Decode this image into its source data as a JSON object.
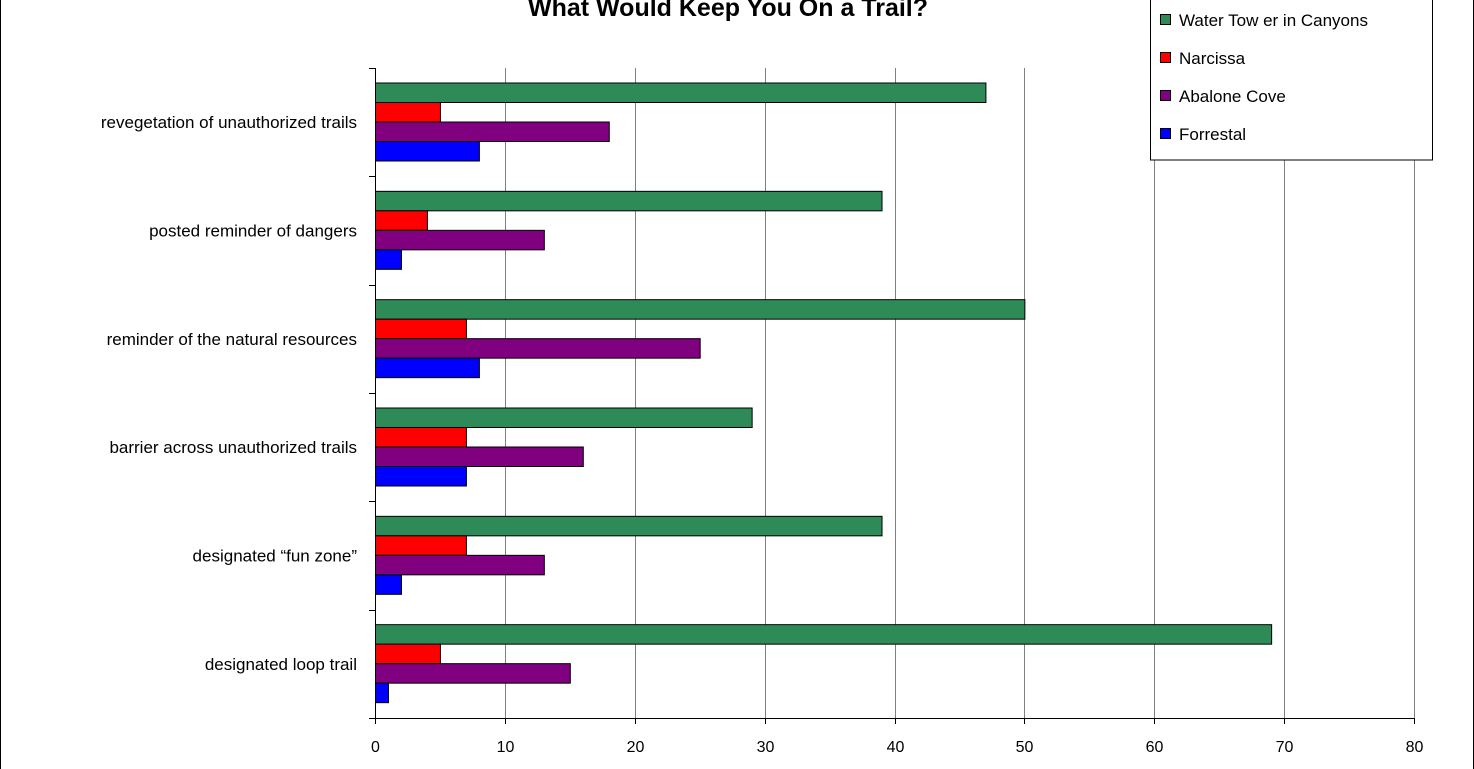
{
  "chart_data": {
    "type": "bar",
    "orientation": "horizontal",
    "title": "What Would Keep You On a Trail?",
    "categories": [
      "revegetation of unauthorized trails",
      "posted reminder of dangers",
      "reminder of the natural resources",
      "barrier across unauthorized trails",
      "designated “fun zone”",
      "designated loop trail"
    ],
    "series": [
      {
        "name": "Water Tow er in Canyons",
        "color": "#2e8b57",
        "values": [
          47,
          39,
          50,
          29,
          39,
          69
        ]
      },
      {
        "name": "Narcissa",
        "color": "#ff0000",
        "values": [
          5,
          4,
          7,
          7,
          7,
          5
        ]
      },
      {
        "name": "Abalone Cove",
        "color": "#800080",
        "values": [
          18,
          13,
          25,
          16,
          13,
          15
        ]
      },
      {
        "name": "Forrestal",
        "color": "#0000ff",
        "values": [
          8,
          2,
          8,
          7,
          2,
          1
        ]
      }
    ],
    "xlim": [
      0,
      80
    ],
    "xticks": [
      0,
      10,
      20,
      30,
      40,
      50,
      60,
      70,
      80
    ],
    "grid": "vertical",
    "legend_position": "top-right"
  }
}
